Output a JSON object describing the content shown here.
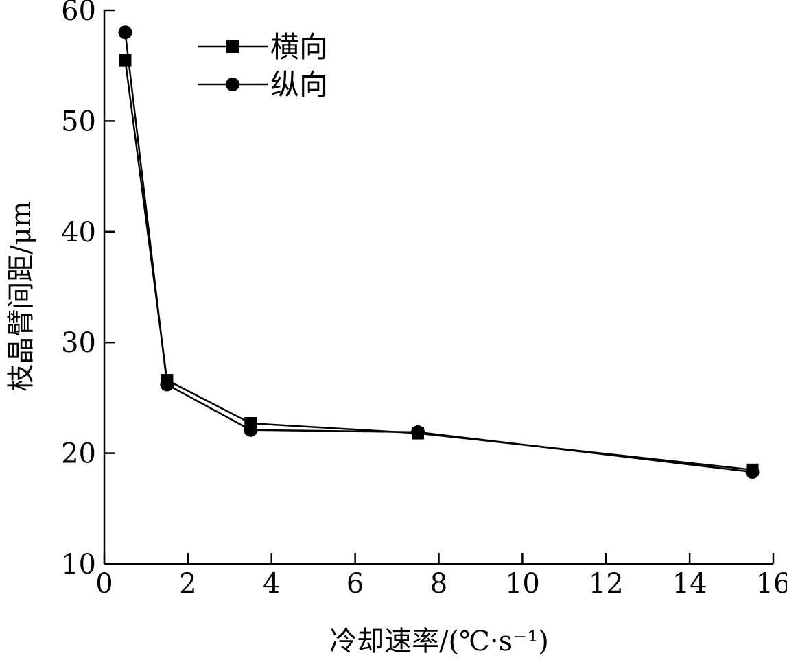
{
  "chart_data": {
    "type": "line",
    "xlabel": "冷却速率/(℃·s⁻¹)",
    "ylabel": "枝晶臂间距/μm",
    "xlim": [
      0,
      16
    ],
    "ylim": [
      10,
      60
    ],
    "x_ticks": [
      0,
      2,
      4,
      6,
      8,
      10,
      12,
      14,
      16
    ],
    "y_ticks": [
      10,
      20,
      30,
      40,
      50,
      60
    ],
    "x_tick_labels": [
      "0",
      "2",
      "4",
      "6",
      "8",
      "10",
      "12",
      "14",
      "16"
    ],
    "y_tick_labels": [
      "10",
      "20",
      "30",
      "40",
      "50",
      "60"
    ],
    "grid": false,
    "legend_position": "top-left",
    "series": [
      {
        "name": "横向",
        "marker": "square",
        "color": "#000000",
        "x": [
          0.5,
          1.5,
          3.5,
          7.5,
          15.5
        ],
        "y": [
          55.5,
          26.6,
          22.7,
          21.8,
          18.5
        ]
      },
      {
        "name": "纵向",
        "marker": "circle",
        "color": "#000000",
        "x": [
          0.5,
          1.5,
          3.5,
          7.5,
          15.5
        ],
        "y": [
          58.0,
          26.2,
          22.1,
          21.9,
          18.3
        ]
      }
    ]
  }
}
